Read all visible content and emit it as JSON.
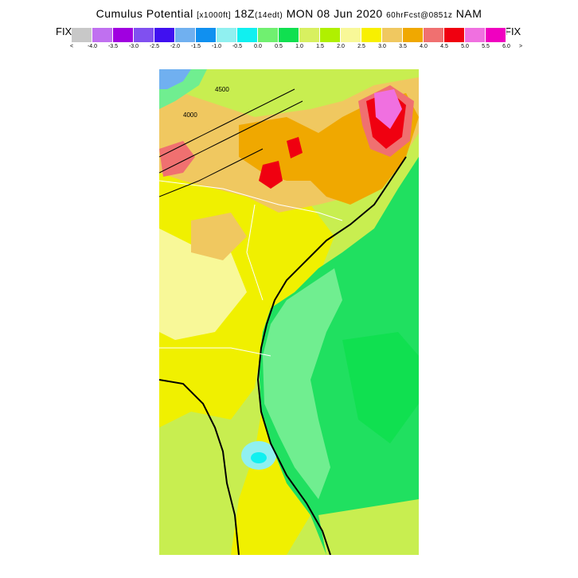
{
  "header": {
    "title_main": "Cumulus Potential",
    "title_units": "[x1000ft]",
    "valid_time": "18Z",
    "valid_local": "(14edt)",
    "date": "MON 08 Jun 2020",
    "forecast_info": "60hrFcst@0851z",
    "model": "NAM"
  },
  "colorbar": {
    "fix_left": "FIX",
    "fix_right": "FIX",
    "left_arrow": "<",
    "right_arrow": ">",
    "colors": [
      "#c8c8c8",
      "#c070f0",
      "#a000e0",
      "#8050f0",
      "#4010f0",
      "#70b0f0",
      "#1090f0",
      "#90f0f0",
      "#10f0f0",
      "#70f070",
      "#10e050",
      "#d8f060",
      "#b0f000",
      "#f8f898",
      "#f8f000",
      "#f0c860",
      "#f0a800",
      "#f07070",
      "#f00010",
      "#f070e0",
      "#f000c0"
    ],
    "labels": [
      "-4.0",
      "-3.5",
      "-3.0",
      "-2.5",
      "-2.0",
      "-1.5",
      "-1.0",
      "-0.5",
      "0.0",
      "0.5",
      "1.0",
      "1.5",
      "2.0",
      "2.5",
      "3.0",
      "3.5",
      "4.0",
      "4.5",
      "5.0",
      "5.5",
      "6.0"
    ]
  },
  "map": {
    "contour_labels": [
      "4500",
      "4000"
    ],
    "region_colors": {
      "ocean": "#20e060",
      "coastal_band": "#70ee90",
      "land_yellow": "#f0f000",
      "land_green": "#c8ee50",
      "high_orange": "#f0a800",
      "high_red": "#f00010",
      "high_magenta": "#f070e0",
      "cyan_low": "#10f0f0"
    }
  }
}
